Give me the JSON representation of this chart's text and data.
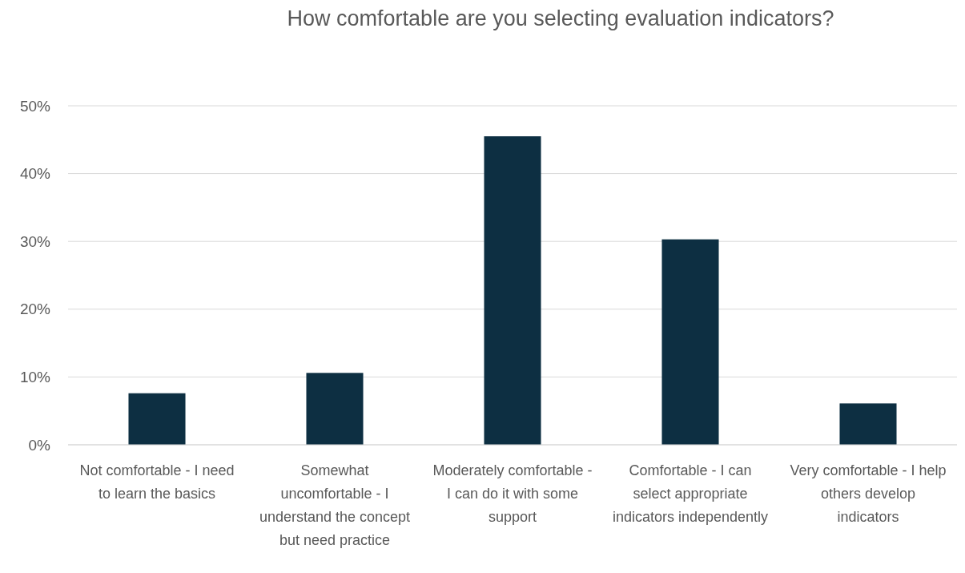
{
  "chart_data": {
    "type": "bar",
    "title": "How comfortable are you selecting evaluation indicators?",
    "categories": [
      "Not comfortable - I need to learn the basics",
      "Somewhat uncomfortable - I understand the concept but need practice",
      "Moderately comfortable - I can do it with some support",
      "Comfortable - I can select appropriate indicators independently",
      "Very comfortable - I help others develop indicators"
    ],
    "values": [
      7.6,
      10.6,
      45.5,
      30.3,
      6.1
    ],
    "color": "#0d2f42",
    "ylim": [
      0,
      50
    ],
    "yticks": [
      {
        "value": 0,
        "label": "0%"
      },
      {
        "value": 10,
        "label": "10%"
      },
      {
        "value": 20,
        "label": "20%"
      },
      {
        "value": 30,
        "label": "30%"
      },
      {
        "value": 40,
        "label": "40%"
      },
      {
        "value": 50,
        "label": "50%"
      }
    ],
    "grid": "y"
  }
}
